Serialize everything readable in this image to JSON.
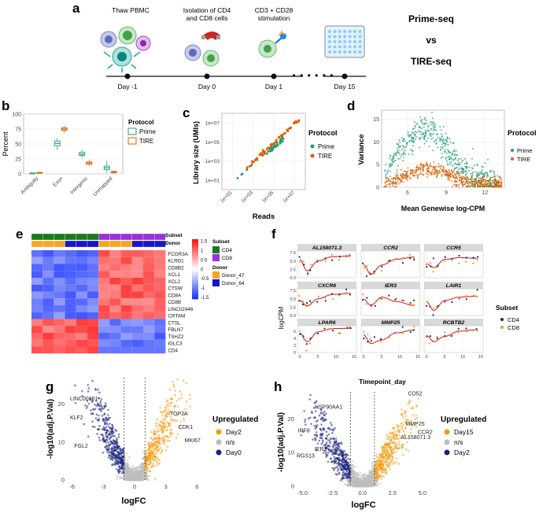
{
  "panel_labels": {
    "a": "a",
    "b": "b",
    "c": "c",
    "d": "d",
    "e": "e",
    "f": "f",
    "g": "g",
    "h": "h"
  },
  "colors": {
    "prime": "#1f9e77",
    "tire": "#d95f02",
    "orange": "#f39c12",
    "navy": "#1a237e",
    "grey": "#bdbdbd",
    "red_line": "#d62728",
    "cd4": "#1b7a1b",
    "cd8": "#9b30d9",
    "donor47": "#f5a623",
    "donor64": "#1616c8"
  },
  "timeline": {
    "steps": [
      {
        "top": "Thaw PBMC",
        "day": "Day -1"
      },
      {
        "top": "Isolation of CD4\nand CD8 cells",
        "day": "Day 0"
      },
      {
        "top": "CD3 + CD28\nstimulation",
        "day": "Day 1"
      },
      {
        "top": "",
        "day": "Day 15"
      }
    ],
    "title1": "Prime-seq",
    "vs": "vs",
    "title2": "TIRE-seq"
  },
  "chart_data": [
    {
      "panel": "b",
      "type": "boxplot",
      "ylabel": "Percent",
      "ylim": [
        0,
        100
      ],
      "yticks": [
        0,
        25,
        50,
        75,
        100
      ],
      "categories": [
        "Ambiguity",
        "Exon",
        "Intergenic",
        "Unmapped"
      ],
      "legend_title": "Protocol",
      "series": [
        {
          "name": "Prime",
          "medians": [
            1,
            51,
            33,
            10
          ],
          "q1": [
            0.5,
            47,
            31,
            7
          ],
          "q3": [
            1.5,
            55,
            36,
            13
          ],
          "min": [
            0,
            40,
            27,
            2
          ],
          "max": [
            2,
            60,
            40,
            22
          ]
        },
        {
          "name": "TIRE",
          "medians": [
            2,
            75,
            18,
            3
          ],
          "q1": [
            1.5,
            73,
            16,
            2
          ],
          "q3": [
            2.5,
            77,
            20,
            4
          ],
          "min": [
            1,
            68,
            13,
            0
          ],
          "max": [
            3,
            81,
            24,
            6
          ]
        }
      ]
    },
    {
      "panel": "c",
      "type": "scatter",
      "xlabel": "Reads",
      "ylabel": "Library size (UMIs)",
      "xticks": [
        "1e+01",
        "1e+03",
        "1e+05",
        "1e+07"
      ],
      "yticks": [
        "1e+01",
        "1e+03",
        "1e+05",
        "1e+07"
      ],
      "legend_title": "Protocol",
      "series": [
        {
          "name": "Prime"
        },
        {
          "name": "TIRE"
        }
      ]
    },
    {
      "panel": "d",
      "type": "scatter",
      "xlabel": "Mean Genewise log-CPM",
      "ylabel": "Variance",
      "xticks": [
        6,
        9,
        12
      ],
      "yticks": [
        0,
        5,
        10,
        15
      ],
      "legend_title": "Protocol",
      "series": [
        {
          "name": "Prime"
        },
        {
          "name": "TIRE"
        }
      ]
    },
    {
      "panel": "e",
      "type": "heatmap",
      "genes": [
        "FCGR3A",
        "KLRD1",
        "CD8B2",
        "XCL1",
        "XCL2",
        "CTSW",
        "CD8A",
        "CD8B",
        "LINC02446",
        "CRTAM",
        "CTSL",
        "FBLN7",
        "TSHZ2",
        "IGLC3",
        "CD4"
      ],
      "annotation_labels": {
        "subset": "Subset",
        "donor": "Donor"
      },
      "scale_ticks": [
        "1.5",
        "1",
        "0.5",
        "0",
        "-0.5",
        "-1",
        "-1.5"
      ],
      "legend_subset": {
        "title": "Subset",
        "items": [
          "CD4",
          "CD8"
        ]
      },
      "legend_donor": {
        "title": "Donor",
        "items": [
          "Donor_47",
          "Donor_64"
        ]
      }
    },
    {
      "panel": "f",
      "type": "line",
      "xlabel": "Timepoint_day",
      "ylabel": "logCPM",
      "xticks": [
        0,
        5,
        10,
        15
      ],
      "facets": [
        "AL158071.3",
        "CCR2",
        "CCR5",
        "CXCR6",
        "IER3",
        "LAIR1",
        "LPAR6",
        "MMP25",
        "RCBTB2"
      ],
      "row_yticks": [
        [
          "0.0",
          "2.5",
          "5.0",
          "7.5"
        ],
        [
          "0.0",
          "2.5",
          "5.0",
          "7.5"
        ],
        [
          "0",
          "2",
          "4",
          "6"
        ]
      ],
      "legend_title": "Subset",
      "legend_items": [
        "CD4",
        "CD8"
      ]
    },
    {
      "panel": "g",
      "type": "scatter",
      "xlabel": "logFC",
      "ylabel": "-log10(adj.P.Val)",
      "xticks": [
        "-6",
        "-3",
        "0",
        "3",
        "6"
      ],
      "yticks": [
        "0",
        "10",
        "20"
      ],
      "legend_title": "Upregulated",
      "legend_items": [
        "Day2",
        "n/s",
        "Day0"
      ],
      "gene_labels": [
        "LINC00861",
        "KLF2",
        "FGL2",
        "TOP2A",
        "CDK1",
        "MKI67"
      ]
    },
    {
      "panel": "h",
      "type": "scatter",
      "xlabel": "logFC",
      "ylabel": "-log10(adj.P.Val)",
      "xticks": [
        "-5.0",
        "-2.5",
        "0.0",
        "2.5",
        "5.0"
      ],
      "yticks": [
        "0",
        "10",
        "20"
      ],
      "legend_title": "Upregulated",
      "legend_items": [
        "Day15",
        "n/s",
        "Day2"
      ],
      "gene_labels": [
        "CD52",
        "HSP90AA1",
        "IRF8",
        "MMP25",
        "CCR2",
        "AL158071.3",
        "IER3",
        "RGS13"
      ]
    }
  ]
}
